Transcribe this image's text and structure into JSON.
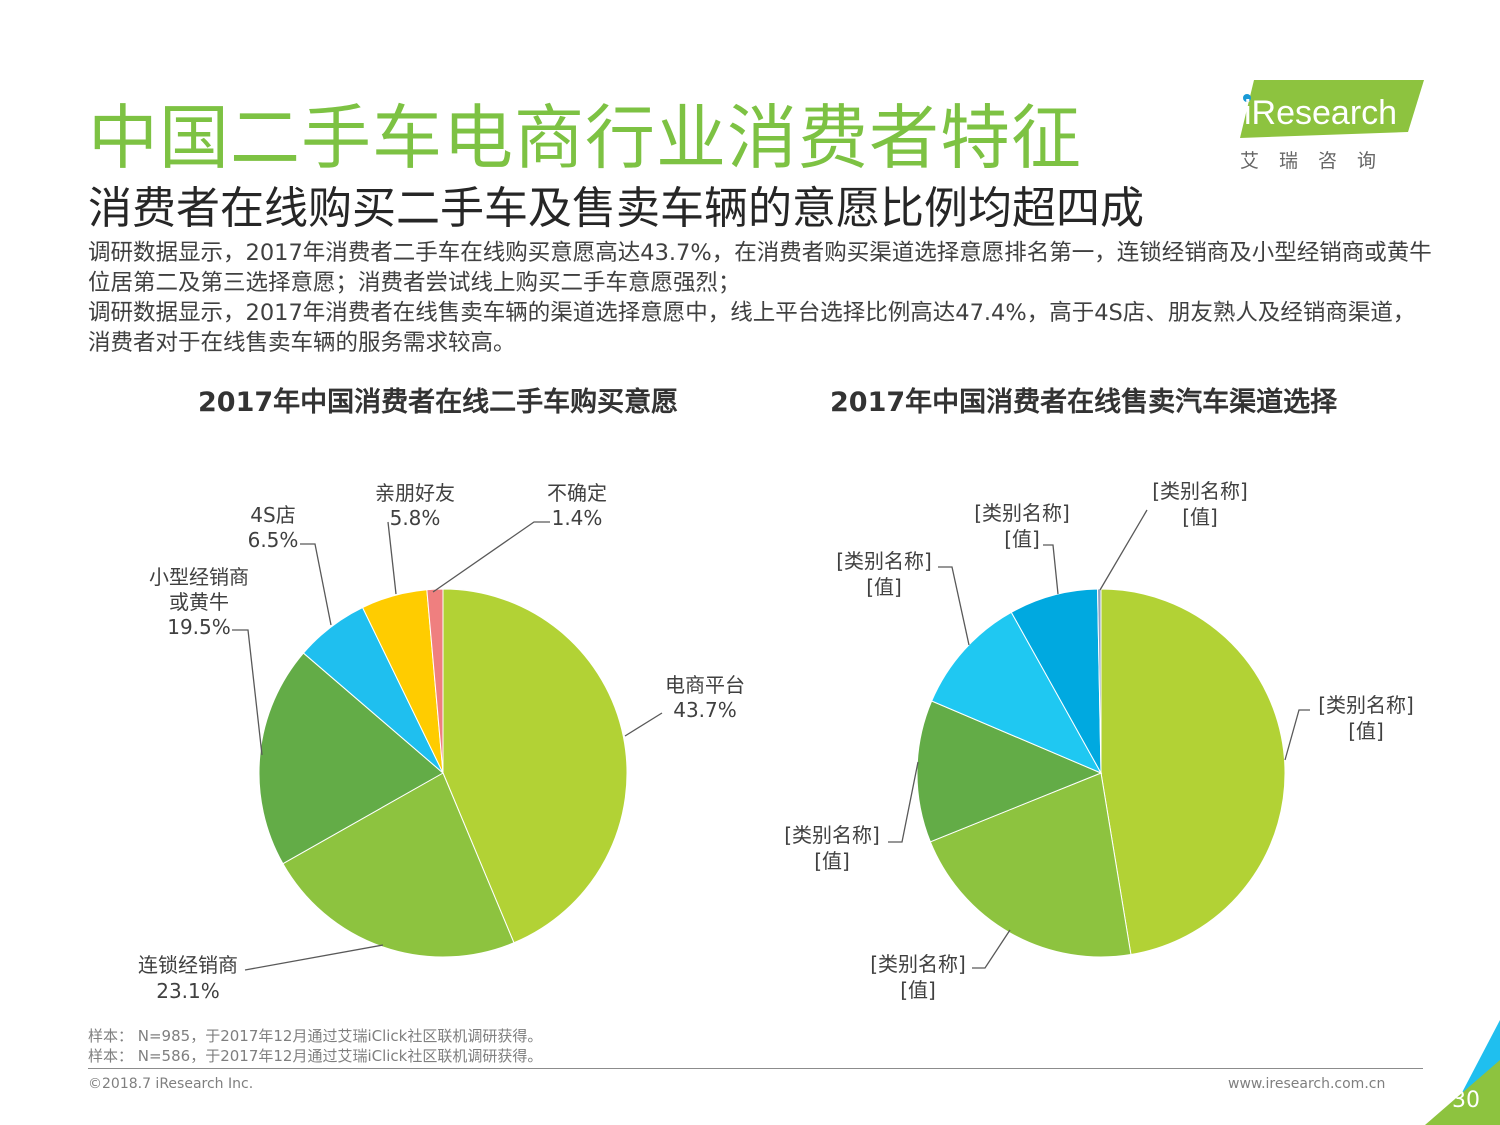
{
  "header": {
    "title": "中国二手车电商行业消费者特征",
    "subtitle": "消费者在线购买二手车及售卖车辆的意愿比例均超四成",
    "paragraphs": [
      "调研数据显示，2017年消费者二手车在线购买意愿高达43.7%，在消费者购买渠道选择意愿排名第一，连锁经销商及小型经销商或黄牛位居第二及第三选择意愿；消费者尝试线上购买二手车意愿强烈；",
      "调研数据显示，2017年消费者在线售卖车辆的渠道选择意愿中，线上平台选择比例高达47.4%，高于4S店、朋友熟人及经销商渠道，消费者对于在线售卖车辆的服务需求较高。"
    ]
  },
  "logo": {
    "text": "iResearch",
    "cn": "艾瑞咨询"
  },
  "chart_data": [
    {
      "type": "pie",
      "title": "2017年中国消费者在线二手车购买意愿",
      "slices": [
        {
          "name": "电商平台",
          "value": 43.7,
          "label": "43.7%",
          "color": "#b2d235"
        },
        {
          "name": "连锁经销商",
          "value": 23.1,
          "label": "23.1%",
          "color": "#8dc33f"
        },
        {
          "name": "小型经销商或黄牛",
          "value": 19.5,
          "label": "19.5%",
          "color": "#63ac47"
        },
        {
          "name": "4S店",
          "value": 6.5,
          "label": "6.5%",
          "color": "#1fbfef"
        },
        {
          "name": "亲朋好友",
          "value": 5.8,
          "label": "5.8%",
          "color": "#ffcc00"
        },
        {
          "name": "不确定",
          "value": 1.4,
          "label": "1.4%",
          "color": "#ef7f7f"
        }
      ]
    },
    {
      "type": "pie",
      "title": "2017年中国消费者在线售卖汽车渠道选择",
      "slices": [
        {
          "name": "[类别名称]",
          "value": 47.4,
          "label": "[值]",
          "color": "#b2d235"
        },
        {
          "name": "[类别名称]",
          "value": 21.5,
          "label": "[值]",
          "color": "#8dc33f"
        },
        {
          "name": "[类别名称]",
          "value": 12.5,
          "label": "[值]",
          "color": "#63ac47"
        },
        {
          "name": "[类别名称]",
          "value": 10.5,
          "label": "[值]",
          "color": "#1fc8f2"
        },
        {
          "name": "[类别名称]",
          "value": 7.8,
          "label": "[值]",
          "color": "#00a9e0"
        },
        {
          "name": "[类别名称]",
          "value": 0.3,
          "label": "[值]",
          "color": "#8fa0c0"
        }
      ]
    }
  ],
  "footer": {
    "notes": [
      "样本： N=985，于2017年12月通过艾瑞iClick社区联机调研获得。",
      "样本： N=586，于2017年12月通过艾瑞iClick社区联机调研获得。"
    ],
    "copyright": "©2018.7 iResearch Inc.",
    "website": "www.iresearch.com.cn",
    "page": "30"
  }
}
